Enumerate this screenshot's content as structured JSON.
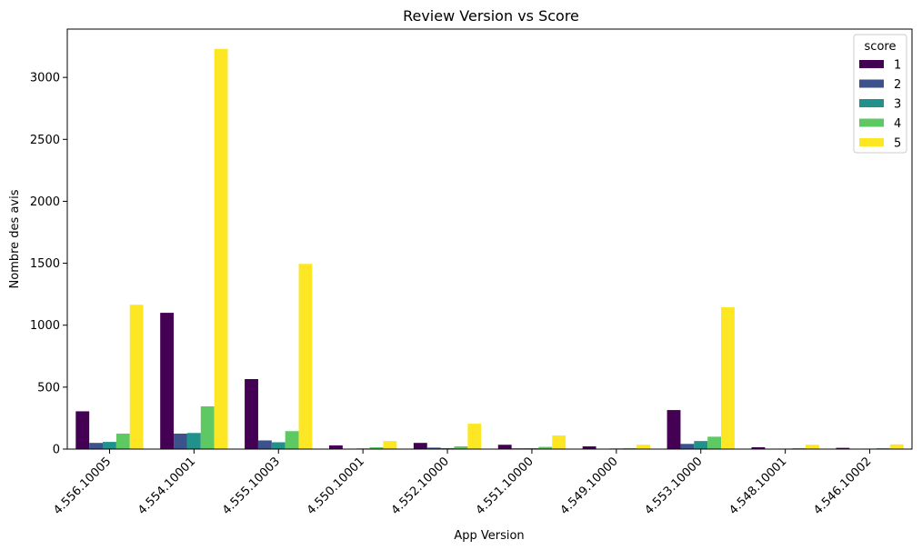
{
  "chart_data": {
    "type": "bar",
    "title": "Review Version vs Score",
    "xlabel": "App Version",
    "ylabel": "Nombre des avis",
    "categories": [
      "4.556.10005",
      "4.554.10001",
      "4.555.10003",
      "4.550.10001",
      "4.552.10000",
      "4.551.10000",
      "4.549.10000",
      "4.553.10000",
      "4.548.10001",
      "4.546.10002"
    ],
    "ylim": [
      0,
      3390
    ],
    "yticks": [
      0,
      500,
      1000,
      1500,
      2000,
      2500,
      3000
    ],
    "legend": {
      "title": "score",
      "placement": "top-right"
    },
    "series": [
      {
        "name": "1",
        "color": "#440154",
        "values": [
          305,
          1100,
          565,
          30,
          50,
          35,
          22,
          315,
          15,
          10
        ]
      },
      {
        "name": "2",
        "color": "#3b528b",
        "values": [
          50,
          125,
          70,
          3,
          12,
          6,
          3,
          42,
          3,
          3
        ]
      },
      {
        "name": "3",
        "color": "#21918c",
        "values": [
          58,
          130,
          55,
          5,
          8,
          7,
          5,
          65,
          4,
          4
        ]
      },
      {
        "name": "4",
        "color": "#5ec962",
        "values": [
          125,
          345,
          145,
          15,
          22,
          18,
          8,
          100,
          8,
          8
        ]
      },
      {
        "name": "5",
        "color": "#fde725",
        "values": [
          1165,
          3230,
          1495,
          65,
          205,
          110,
          35,
          1145,
          35,
          38
        ]
      }
    ]
  }
}
